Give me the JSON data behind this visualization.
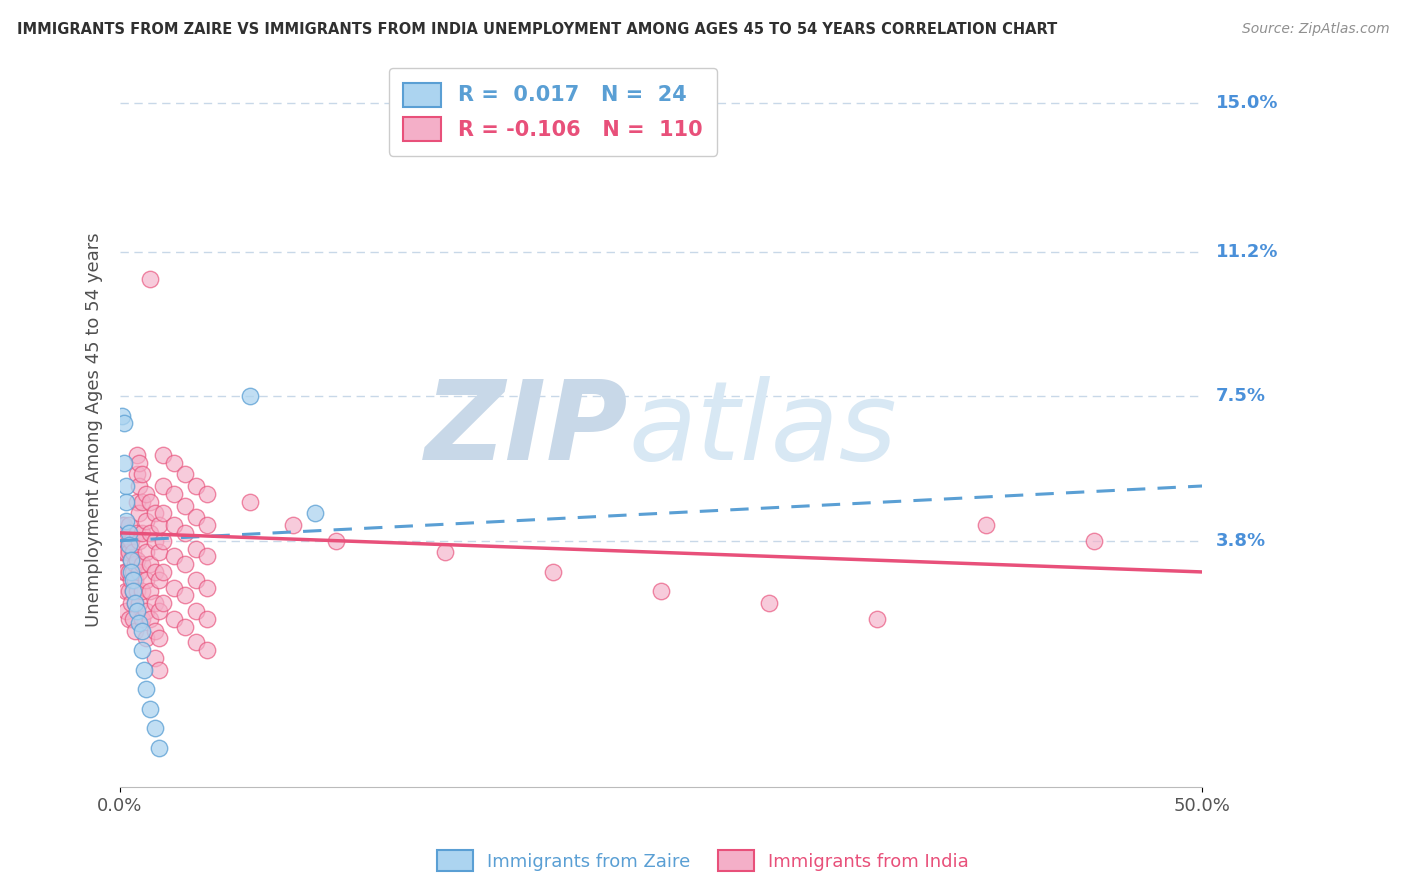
{
  "title": "IMMIGRANTS FROM ZAIRE VS IMMIGRANTS FROM INDIA UNEMPLOYMENT AMONG AGES 45 TO 54 YEARS CORRELATION CHART",
  "source": "Source: ZipAtlas.com",
  "ylabel": "Unemployment Among Ages 45 to 54 years",
  "xlim": [
    0,
    0.5
  ],
  "ylim": [
    -0.025,
    0.158
  ],
  "yticks": [
    0.038,
    0.075,
    0.112,
    0.15
  ],
  "ytick_labels": [
    "3.8%",
    "7.5%",
    "11.2%",
    "15.0%"
  ],
  "xticks": [
    0.0,
    0.5
  ],
  "xtick_labels": [
    "0.0%",
    "50.0%"
  ],
  "legend_zaire": "Immigrants from Zaire",
  "legend_india": "Immigrants from India",
  "R_zaire": 0.017,
  "N_zaire": 24,
  "R_india": -0.106,
  "N_india": 110,
  "color_zaire": "#acd4f0",
  "color_india": "#f4afc8",
  "trendline_zaire_color": "#5a9fd4",
  "trendline_india_color": "#e8507a",
  "background_color": "#ffffff",
  "grid_color": "#c8d8e8",
  "watermark_color": "#dce8f4",
  "title_color": "#303030",
  "source_color": "#909090",
  "axis_label_color": "#505050",
  "tick_color_right": "#4a90d9",
  "zaire_trendline": [
    0.038,
    0.052
  ],
  "india_trendline": [
    0.04,
    0.03
  ],
  "zaire_points": [
    [
      0.001,
      0.07
    ],
    [
      0.002,
      0.068
    ],
    [
      0.002,
      0.058
    ],
    [
      0.003,
      0.052
    ],
    [
      0.003,
      0.048
    ],
    [
      0.003,
      0.043
    ],
    [
      0.004,
      0.04
    ],
    [
      0.004,
      0.037
    ],
    [
      0.005,
      0.033
    ],
    [
      0.005,
      0.03
    ],
    [
      0.006,
      0.028
    ],
    [
      0.006,
      0.025
    ],
    [
      0.007,
      0.022
    ],
    [
      0.008,
      0.02
    ],
    [
      0.009,
      0.017
    ],
    [
      0.01,
      0.015
    ],
    [
      0.01,
      0.01
    ],
    [
      0.011,
      0.005
    ],
    [
      0.012,
      0.0
    ],
    [
      0.014,
      -0.005
    ],
    [
      0.016,
      -0.01
    ],
    [
      0.018,
      -0.015
    ],
    [
      0.06,
      0.075
    ],
    [
      0.09,
      0.045
    ]
  ],
  "india_points": [
    [
      0.001,
      0.042
    ],
    [
      0.001,
      0.038
    ],
    [
      0.001,
      0.035
    ],
    [
      0.002,
      0.042
    ],
    [
      0.002,
      0.038
    ],
    [
      0.002,
      0.035
    ],
    [
      0.002,
      0.03
    ],
    [
      0.003,
      0.038
    ],
    [
      0.003,
      0.035
    ],
    [
      0.003,
      0.03
    ],
    [
      0.003,
      0.025
    ],
    [
      0.003,
      0.02
    ],
    [
      0.004,
      0.042
    ],
    [
      0.004,
      0.038
    ],
    [
      0.004,
      0.035
    ],
    [
      0.004,
      0.03
    ],
    [
      0.004,
      0.025
    ],
    [
      0.004,
      0.018
    ],
    [
      0.005,
      0.038
    ],
    [
      0.005,
      0.033
    ],
    [
      0.005,
      0.028
    ],
    [
      0.005,
      0.022
    ],
    [
      0.006,
      0.035
    ],
    [
      0.006,
      0.03
    ],
    [
      0.006,
      0.025
    ],
    [
      0.006,
      0.018
    ],
    [
      0.007,
      0.032
    ],
    [
      0.007,
      0.028
    ],
    [
      0.007,
      0.022
    ],
    [
      0.007,
      0.015
    ],
    [
      0.008,
      0.06
    ],
    [
      0.008,
      0.055
    ],
    [
      0.008,
      0.048
    ],
    [
      0.008,
      0.04
    ],
    [
      0.008,
      0.033
    ],
    [
      0.008,
      0.025
    ],
    [
      0.009,
      0.058
    ],
    [
      0.009,
      0.052
    ],
    [
      0.009,
      0.045
    ],
    [
      0.009,
      0.038
    ],
    [
      0.009,
      0.03
    ],
    [
      0.009,
      0.022
    ],
    [
      0.01,
      0.055
    ],
    [
      0.01,
      0.048
    ],
    [
      0.01,
      0.04
    ],
    [
      0.01,
      0.032
    ],
    [
      0.01,
      0.025
    ],
    [
      0.01,
      0.018
    ],
    [
      0.012,
      0.05
    ],
    [
      0.012,
      0.043
    ],
    [
      0.012,
      0.035
    ],
    [
      0.012,
      0.028
    ],
    [
      0.012,
      0.02
    ],
    [
      0.012,
      0.013
    ],
    [
      0.014,
      0.105
    ],
    [
      0.014,
      0.048
    ],
    [
      0.014,
      0.04
    ],
    [
      0.014,
      0.032
    ],
    [
      0.014,
      0.025
    ],
    [
      0.014,
      0.018
    ],
    [
      0.016,
      0.045
    ],
    [
      0.016,
      0.038
    ],
    [
      0.016,
      0.03
    ],
    [
      0.016,
      0.022
    ],
    [
      0.016,
      0.015
    ],
    [
      0.016,
      0.008
    ],
    [
      0.018,
      0.042
    ],
    [
      0.018,
      0.035
    ],
    [
      0.018,
      0.028
    ],
    [
      0.018,
      0.02
    ],
    [
      0.018,
      0.013
    ],
    [
      0.018,
      0.005
    ],
    [
      0.02,
      0.06
    ],
    [
      0.02,
      0.052
    ],
    [
      0.02,
      0.045
    ],
    [
      0.02,
      0.038
    ],
    [
      0.02,
      0.03
    ],
    [
      0.02,
      0.022
    ],
    [
      0.025,
      0.058
    ],
    [
      0.025,
      0.05
    ],
    [
      0.025,
      0.042
    ],
    [
      0.025,
      0.034
    ],
    [
      0.025,
      0.026
    ],
    [
      0.025,
      0.018
    ],
    [
      0.03,
      0.055
    ],
    [
      0.03,
      0.047
    ],
    [
      0.03,
      0.04
    ],
    [
      0.03,
      0.032
    ],
    [
      0.03,
      0.024
    ],
    [
      0.03,
      0.016
    ],
    [
      0.035,
      0.052
    ],
    [
      0.035,
      0.044
    ],
    [
      0.035,
      0.036
    ],
    [
      0.035,
      0.028
    ],
    [
      0.035,
      0.02
    ],
    [
      0.035,
      0.012
    ],
    [
      0.04,
      0.05
    ],
    [
      0.04,
      0.042
    ],
    [
      0.04,
      0.034
    ],
    [
      0.04,
      0.026
    ],
    [
      0.04,
      0.018
    ],
    [
      0.04,
      0.01
    ],
    [
      0.06,
      0.048
    ],
    [
      0.08,
      0.042
    ],
    [
      0.1,
      0.038
    ],
    [
      0.15,
      0.035
    ],
    [
      0.2,
      0.03
    ],
    [
      0.25,
      0.025
    ],
    [
      0.3,
      0.022
    ],
    [
      0.35,
      0.018
    ],
    [
      0.4,
      0.042
    ],
    [
      0.45,
      0.038
    ]
  ]
}
